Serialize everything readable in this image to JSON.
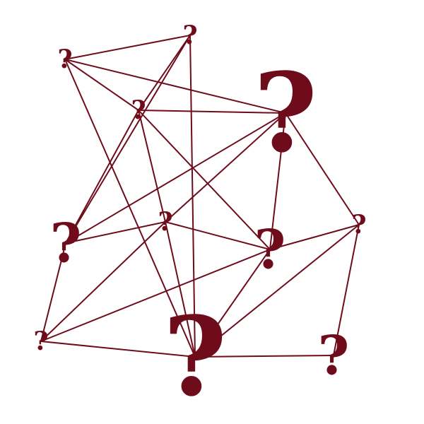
{
  "diagram": {
    "type": "network-graph",
    "background_color": "#ffffff",
    "ink_color": "#6e0c1c",
    "node_symbol": "?",
    "nodes": [
      {
        "id": "n1",
        "label": "?",
        "size": "small"
      },
      {
        "id": "n2",
        "label": "?",
        "size": "small"
      },
      {
        "id": "n3",
        "label": "?",
        "size": "small"
      },
      {
        "id": "n4",
        "label": "?",
        "size": "large"
      },
      {
        "id": "n5",
        "label": "?",
        "size": "medium"
      },
      {
        "id": "n6",
        "label": "?",
        "size": "small"
      },
      {
        "id": "n7",
        "label": "?",
        "size": "medium"
      },
      {
        "id": "n8",
        "label": "?",
        "size": "small"
      },
      {
        "id": "n9",
        "label": "?",
        "size": "small"
      },
      {
        "id": "n10",
        "label": "?",
        "size": "large"
      },
      {
        "id": "n11",
        "label": "?",
        "size": "medium"
      }
    ],
    "edges": [
      [
        "n2",
        "n1"
      ],
      [
        "n2",
        "n3"
      ],
      [
        "n2",
        "n5"
      ],
      [
        "n2",
        "n10"
      ],
      [
        "n1",
        "n3"
      ],
      [
        "n1",
        "n4"
      ],
      [
        "n1",
        "n10"
      ],
      [
        "n3",
        "n4"
      ],
      [
        "n3",
        "n5"
      ],
      [
        "n3",
        "n7"
      ],
      [
        "n3",
        "n6"
      ],
      [
        "n4",
        "n5"
      ],
      [
        "n4",
        "n6"
      ],
      [
        "n4",
        "n7"
      ],
      [
        "n4",
        "n8"
      ],
      [
        "n5",
        "n6"
      ],
      [
        "n5",
        "n9"
      ],
      [
        "n6",
        "n7"
      ],
      [
        "n6",
        "n10"
      ],
      [
        "n6",
        "n9"
      ],
      [
        "n7",
        "n8"
      ],
      [
        "n7",
        "n9"
      ],
      [
        "n7",
        "n10"
      ],
      [
        "n8",
        "n10"
      ],
      [
        "n8",
        "n11"
      ],
      [
        "n9",
        "n10"
      ],
      [
        "n10",
        "n11"
      ]
    ]
  }
}
